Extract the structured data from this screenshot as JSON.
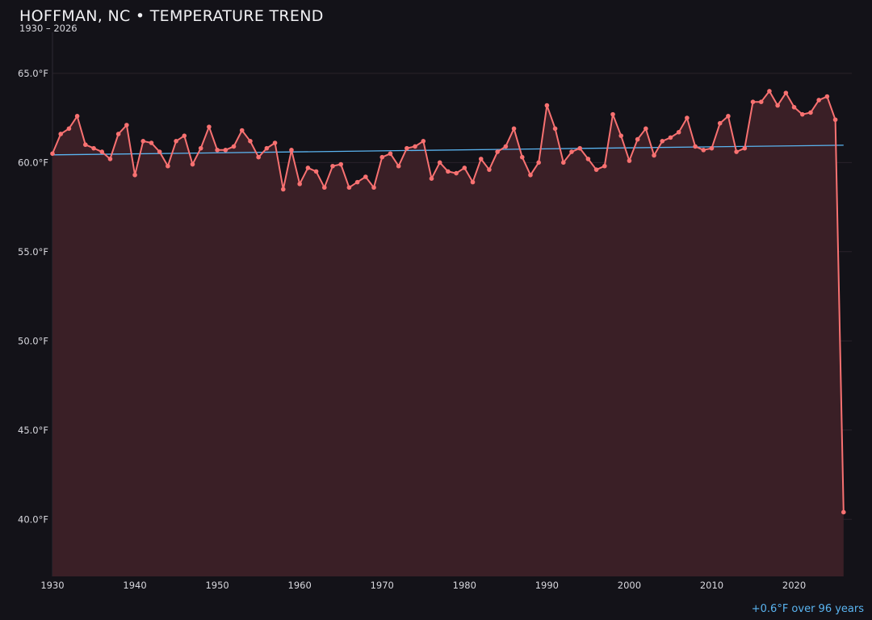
{
  "chart_data": {
    "type": "area",
    "title": "HOFFMAN, NC • TEMPERATURE TREND",
    "subtitle": "1930 – 2026",
    "xlabel": "",
    "ylabel": "",
    "xlim": [
      1930,
      2027
    ],
    "ylim": [
      36.8,
      67.3
    ],
    "grid": true,
    "y_ticks": [
      40,
      45,
      50,
      55,
      60,
      65
    ],
    "y_tick_labels": [
      "40.0°F",
      "45.0°F",
      "50.0°F",
      "55.0°F",
      "60.0°F",
      "65.0°F"
    ],
    "x_ticks": [
      1930,
      1940,
      1950,
      1960,
      1970,
      1980,
      1990,
      2000,
      2010,
      2020
    ],
    "x_tick_labels": [
      "1930",
      "1940",
      "1950",
      "1960",
      "1970",
      "1980",
      "1990",
      "2000",
      "2010",
      "2020"
    ],
    "series": [
      {
        "x": [
          1930,
          1931,
          1932,
          1933,
          1934,
          1935,
          1936,
          1937,
          1938,
          1939,
          1940,
          1941,
          1942,
          1943,
          1944,
          1945,
          1946,
          1947,
          1948,
          1949,
          1950,
          1951,
          1952,
          1953,
          1954,
          1955,
          1956,
          1957,
          1958,
          1959,
          1960,
          1961,
          1962,
          1963,
          1964,
          1965,
          1966,
          1967,
          1968,
          1969,
          1970,
          1971,
          1972,
          1973,
          1974,
          1975,
          1976,
          1977,
          1978,
          1979,
          1980,
          1981,
          1982,
          1983,
          1984,
          1985,
          1986,
          1987,
          1988,
          1989,
          1990,
          1991,
          1992,
          1993,
          1994,
          1995,
          1996,
          1997,
          1998,
          1999,
          2000,
          2001,
          2002,
          2003,
          2004,
          2005,
          2006,
          2007,
          2008,
          2009,
          2010,
          2011,
          2012,
          2013,
          2014,
          2015,
          2016,
          2017,
          2018,
          2019,
          2020,
          2021,
          2022,
          2023,
          2024,
          2025,
          2026
        ],
        "values": [
          60.5,
          61.6,
          61.9,
          62.6,
          61.0,
          60.8,
          60.6,
          60.2,
          61.6,
          62.1,
          59.3,
          61.2,
          61.1,
          60.6,
          59.8,
          61.2,
          61.5,
          59.9,
          60.8,
          62.0,
          60.7,
          60.7,
          60.9,
          61.8,
          61.2,
          60.3,
          60.8,
          61.1,
          58.5,
          60.7,
          58.8,
          59.7,
          59.5,
          58.6,
          59.8,
          59.9,
          58.6,
          58.9,
          59.2,
          58.6,
          60.3,
          60.5,
          59.8,
          60.8,
          60.9,
          61.2,
          59.1,
          60.0,
          59.5,
          59.4,
          59.7,
          58.9,
          60.2,
          59.6,
          60.6,
          60.9,
          61.9,
          60.3,
          59.3,
          60.0,
          63.2,
          61.9,
          60.0,
          60.6,
          60.8,
          60.2,
          59.6,
          59.8,
          62.7,
          61.5,
          60.1,
          61.3,
          61.9,
          60.4,
          61.2,
          61.4,
          61.7,
          62.5,
          60.9,
          60.7,
          60.8,
          62.2,
          62.6,
          60.6,
          60.8,
          63.4,
          63.4,
          64.0,
          63.2,
          63.9,
          63.1,
          62.7,
          62.8,
          63.5,
          63.7,
          62.4,
          40.4
        ],
        "color": "#f87171",
        "fill_color": "#3a1f26"
      }
    ],
    "trend": {
      "x": [
        1930,
        2026
      ],
      "values": [
        60.43,
        60.97
      ],
      "color": "#5ab4f0"
    },
    "annotation": "+0.6°F over 96 years"
  }
}
